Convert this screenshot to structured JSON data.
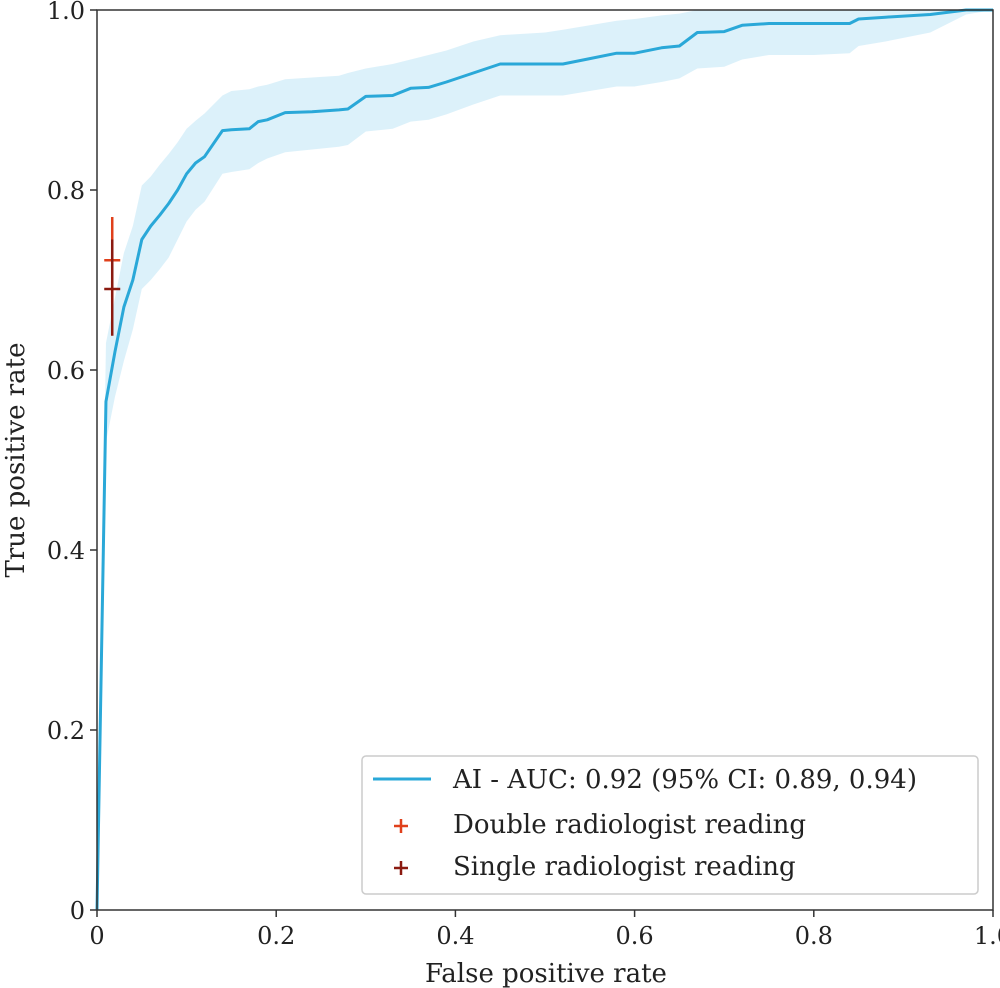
{
  "chart_data": {
    "type": "line",
    "xlabel": "False positive rate",
    "ylabel": "True positive rate",
    "xlim": [
      0,
      1
    ],
    "ylim": [
      0,
      1
    ],
    "xticks": [
      "0",
      "0.2",
      "0.4",
      "0.6",
      "0.8",
      "1.0"
    ],
    "yticks": [
      "0",
      "0.2",
      "0.4",
      "0.6",
      "0.8",
      "1.0"
    ],
    "grid": false,
    "legend_position": "lower-right",
    "colors": {
      "ai": "#2aa8d8",
      "ci_band": "#d8f0f9",
      "double": "#e0401b",
      "single": "#8b1a10"
    },
    "series": [
      {
        "name": "AI - AUC: 0.92 (95% CI: 0.89, 0.94)",
        "kind": "line",
        "x": [
          0,
          0.01,
          0.02,
          0.03,
          0.04,
          0.05,
          0.06,
          0.07,
          0.08,
          0.09,
          0.1,
          0.11,
          0.12,
          0.14,
          0.15,
          0.17,
          0.18,
          0.19,
          0.21,
          0.24,
          0.27,
          0.28,
          0.3,
          0.33,
          0.35,
          0.37,
          0.39,
          0.42,
          0.45,
          0.5,
          0.52,
          0.55,
          0.58,
          0.6,
          0.63,
          0.65,
          0.67,
          0.7,
          0.72,
          0.75,
          0.8,
          0.84,
          0.85,
          0.88,
          0.93,
          0.97,
          1.0
        ],
        "y": [
          0,
          0.565,
          0.62,
          0.67,
          0.7,
          0.745,
          0.76,
          0.772,
          0.785,
          0.8,
          0.818,
          0.83,
          0.837,
          0.866,
          0.867,
          0.868,
          0.876,
          0.878,
          0.886,
          0.887,
          0.889,
          0.89,
          0.904,
          0.905,
          0.913,
          0.914,
          0.92,
          0.93,
          0.94,
          0.94,
          0.94,
          0.946,
          0.952,
          0.952,
          0.958,
          0.96,
          0.975,
          0.976,
          0.983,
          0.985,
          0.985,
          0.985,
          0.99,
          0.992,
          0.995,
          1.0,
          1.0
        ],
        "ci_upper": [
          0,
          0.63,
          0.68,
          0.73,
          0.76,
          0.805,
          0.815,
          0.828,
          0.84,
          0.853,
          0.868,
          0.877,
          0.885,
          0.905,
          0.91,
          0.912,
          0.915,
          0.917,
          0.923,
          0.925,
          0.927,
          0.93,
          0.935,
          0.94,
          0.945,
          0.95,
          0.955,
          0.965,
          0.972,
          0.975,
          0.978,
          0.983,
          0.988,
          0.99,
          0.994,
          0.996,
          1.0,
          1.0,
          1.0,
          1.0,
          1.0,
          1.0,
          1.0,
          1.0,
          1.0,
          1.0,
          1.0
        ],
        "ci_lower": [
          0,
          0.52,
          0.57,
          0.61,
          0.645,
          0.69,
          0.7,
          0.712,
          0.725,
          0.745,
          0.765,
          0.778,
          0.787,
          0.818,
          0.82,
          0.823,
          0.83,
          0.835,
          0.842,
          0.845,
          0.848,
          0.85,
          0.865,
          0.868,
          0.876,
          0.878,
          0.884,
          0.895,
          0.905,
          0.905,
          0.905,
          0.91,
          0.915,
          0.915,
          0.92,
          0.924,
          0.935,
          0.937,
          0.945,
          0.95,
          0.95,
          0.952,
          0.96,
          0.965,
          0.975,
          0.995,
          1.0
        ]
      },
      {
        "name": "Double radiologist reading",
        "kind": "point",
        "x": 0.017,
        "y": 0.722,
        "y_err": [
          0.675,
          0.77
        ]
      },
      {
        "name": "Single radiologist reading",
        "kind": "point",
        "x": 0.017,
        "y": 0.69,
        "y_err": [
          0.638,
          0.745
        ]
      }
    ]
  }
}
